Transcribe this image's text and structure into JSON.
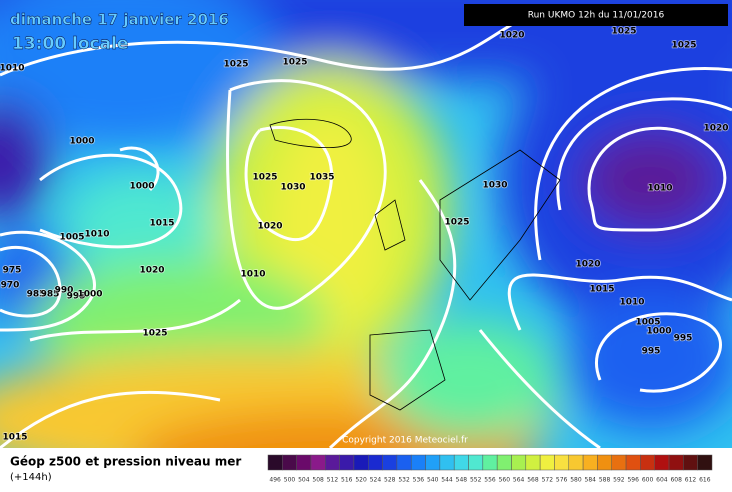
{
  "header": {
    "title": "dimanche 17 janvier 2016",
    "time": "13:00 locale",
    "run": "Run UKMO 12h du 11/01/2016"
  },
  "isobar_labels": [
    1020,
    1025,
    1025,
    1010,
    1025,
    1025,
    1020,
    1000,
    1000,
    1025,
    1030,
    1035,
    1030,
    1010,
    1015,
    1020,
    1025,
    1005,
    1010,
    975,
    1020,
    1010,
    1020,
    970,
    985,
    985,
    990,
    995,
    1000,
    1015,
    1010,
    1005,
    1000,
    995,
    995,
    1025,
    1015
  ],
  "copyright": "Copyright 2016 Meteociel.fr",
  "legend": {
    "title": "Géop z500 et pression niveau mer",
    "lead": "(+144h)",
    "labels": [
      496,
      500,
      504,
      508,
      512,
      516,
      520,
      524,
      528,
      532,
      536,
      540,
      544,
      548,
      552,
      556,
      560,
      564,
      568,
      572,
      576,
      580,
      584,
      588,
      592,
      596,
      600,
      604,
      608,
      612,
      616
    ],
    "colors": [
      "#2a0a2a",
      "#4a0a4a",
      "#6a0a6a",
      "#8a1a8a",
      "#5a1a9a",
      "#3a1aaa",
      "#1a1ab8",
      "#1a2ad0",
      "#1a40e0",
      "#1a60f0",
      "#1a80f8",
      "#20a0f8",
      "#30c0f0",
      "#40d8e8",
      "#50e8d0",
      "#60f0a0",
      "#80f070",
      "#a8f050",
      "#d0f040",
      "#f0f040",
      "#f8e040",
      "#f8c830",
      "#f8b020",
      "#f09010",
      "#e87010",
      "#e05010",
      "#c83010",
      "#b01010",
      "#901010",
      "#601010",
      "#301010"
    ]
  }
}
